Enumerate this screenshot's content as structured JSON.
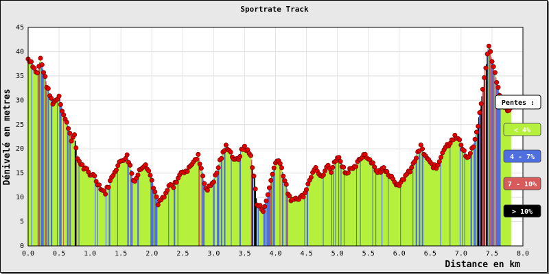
{
  "chart_data": {
    "type": "bar",
    "title": "Sportrate Track",
    "xlabel": "Distance en km",
    "ylabel": "Dénivelé en metres",
    "xlim": [
      0,
      8.0
    ],
    "ylim": [
      0,
      45
    ],
    "x_ticks": [
      "0.0",
      "0.5",
      "1.0",
      "1.5",
      "2.0",
      "2.5",
      "3.0",
      "3.5",
      "4.0",
      "4.5",
      "5.0",
      "5.5",
      "6.0",
      "6.5",
      "7.0",
      "7.5",
      "8.0"
    ],
    "y_ticks": [
      "0",
      "5",
      "10",
      "15",
      "20",
      "25",
      "30",
      "35",
      "40",
      "45"
    ],
    "grid": true,
    "legend": {
      "title": "Pentes :",
      "position": "right",
      "items": [
        {
          "label": "< 4%",
          "color": "#b4f03c"
        },
        {
          "label": "4 - 7%",
          "color": "#4f6fe0"
        },
        {
          "label": "7 - 10%",
          "color": "#d85a5a"
        },
        {
          "label": "> 10%",
          "color": "#000000"
        }
      ]
    },
    "marker_color": "#e00000",
    "profile": [
      [
        0.0,
        38.5
      ],
      [
        0.05,
        38.0
      ],
      [
        0.1,
        36.5
      ],
      [
        0.15,
        35.5
      ],
      [
        0.2,
        38.5
      ],
      [
        0.25,
        36.0
      ],
      [
        0.3,
        33.0
      ],
      [
        0.35,
        31.0
      ],
      [
        0.4,
        29.5
      ],
      [
        0.45,
        30.0
      ],
      [
        0.5,
        31.0
      ],
      [
        0.55,
        28.0
      ],
      [
        0.6,
        26.0
      ],
      [
        0.65,
        24.5
      ],
      [
        0.7,
        22.0
      ],
      [
        0.75,
        22.5
      ],
      [
        0.8,
        18.0
      ],
      [
        0.85,
        17.0
      ],
      [
        0.9,
        16.0
      ],
      [
        0.95,
        15.5
      ],
      [
        1.0,
        14.5
      ],
      [
        1.05,
        15.0
      ],
      [
        1.1,
        13.5
      ],
      [
        1.15,
        12.5
      ],
      [
        1.2,
        11.5
      ],
      [
        1.25,
        11.0
      ],
      [
        1.3,
        12.5
      ],
      [
        1.35,
        14.0
      ],
      [
        1.4,
        15.5
      ],
      [
        1.45,
        16.5
      ],
      [
        1.5,
        17.5
      ],
      [
        1.55,
        18.0
      ],
      [
        1.6,
        18.5
      ],
      [
        1.65,
        16.5
      ],
      [
        1.7,
        13.5
      ],
      [
        1.75,
        14.0
      ],
      [
        1.8,
        15.5
      ],
      [
        1.85,
        16.5
      ],
      [
        1.9,
        17.0
      ],
      [
        1.95,
        15.5
      ],
      [
        2.0,
        13.5
      ],
      [
        2.05,
        11.0
      ],
      [
        2.1,
        8.5
      ],
      [
        2.15,
        9.5
      ],
      [
        2.2,
        10.0
      ],
      [
        2.25,
        11.5
      ],
      [
        2.3,
        12.5
      ],
      [
        2.35,
        12.0
      ],
      [
        2.4,
        13.5
      ],
      [
        2.45,
        14.5
      ],
      [
        2.5,
        15.5
      ],
      [
        2.55,
        15.0
      ],
      [
        2.6,
        16.5
      ],
      [
        2.65,
        17.0
      ],
      [
        2.7,
        17.5
      ],
      [
        2.75,
        18.5
      ],
      [
        2.8,
        16.0
      ],
      [
        2.85,
        13.0
      ],
      [
        2.9,
        11.5
      ],
      [
        2.95,
        12.5
      ],
      [
        3.0,
        13.5
      ],
      [
        3.05,
        15.0
      ],
      [
        3.1,
        17.5
      ],
      [
        3.15,
        19.0
      ],
      [
        3.2,
        20.5
      ],
      [
        3.25,
        20.0
      ],
      [
        3.3,
        18.5
      ],
      [
        3.35,
        17.5
      ],
      [
        3.4,
        18.0
      ],
      [
        3.45,
        19.5
      ],
      [
        3.5,
        20.5
      ],
      [
        3.55,
        19.5
      ],
      [
        3.6,
        18.5
      ],
      [
        3.65,
        14.5
      ],
      [
        3.7,
        8.5
      ],
      [
        3.75,
        8.0
      ],
      [
        3.8,
        7.5
      ],
      [
        3.85,
        9.0
      ],
      [
        3.9,
        12.0
      ],
      [
        3.95,
        15.0
      ],
      [
        4.0,
        17.0
      ],
      [
        4.05,
        18.0
      ],
      [
        4.1,
        16.0
      ],
      [
        4.15,
        13.5
      ],
      [
        4.2,
        11.0
      ],
      [
        4.25,
        9.0
      ],
      [
        4.3,
        10.0
      ],
      [
        4.35,
        9.5
      ],
      [
        4.4,
        10.0
      ],
      [
        4.45,
        10.5
      ],
      [
        4.5,
        12.0
      ],
      [
        4.55,
        13.5
      ],
      [
        4.6,
        15.5
      ],
      [
        4.65,
        16.5
      ],
      [
        4.7,
        15.0
      ],
      [
        4.75,
        14.0
      ],
      [
        4.8,
        15.5
      ],
      [
        4.85,
        16.5
      ],
      [
        4.9,
        15.5
      ],
      [
        4.95,
        17.0
      ],
      [
        5.0,
        18.5
      ],
      [
        5.05,
        17.5
      ],
      [
        5.1,
        16.0
      ],
      [
        5.15,
        15.0
      ],
      [
        5.2,
        16.0
      ],
      [
        5.25,
        15.5
      ],
      [
        5.3,
        16.5
      ],
      [
        5.35,
        17.5
      ],
      [
        5.4,
        18.5
      ],
      [
        5.45,
        19.0
      ],
      [
        5.5,
        18.0
      ],
      [
        5.55,
        17.5
      ],
      [
        5.6,
        16.5
      ],
      [
        5.65,
        15.0
      ],
      [
        5.7,
        15.5
      ],
      [
        5.75,
        16.0
      ],
      [
        5.8,
        15.5
      ],
      [
        5.85,
        14.5
      ],
      [
        5.9,
        14.0
      ],
      [
        5.95,
        13.0
      ],
      [
        6.0,
        12.0
      ],
      [
        6.05,
        13.5
      ],
      [
        6.1,
        14.5
      ],
      [
        6.15,
        15.0
      ],
      [
        6.2,
        16.0
      ],
      [
        6.25,
        17.5
      ],
      [
        6.3,
        19.0
      ],
      [
        6.35,
        20.5
      ],
      [
        6.4,
        19.0
      ],
      [
        6.45,
        18.0
      ],
      [
        6.5,
        17.0
      ],
      [
        6.55,
        16.5
      ],
      [
        6.6,
        16.0
      ],
      [
        6.65,
        17.5
      ],
      [
        6.7,
        19.5
      ],
      [
        6.75,
        20.5
      ],
      [
        6.8,
        21.0
      ],
      [
        6.85,
        22.0
      ],
      [
        6.9,
        22.5
      ],
      [
        6.95,
        22.0
      ],
      [
        7.0,
        21.0
      ],
      [
        7.05,
        19.5
      ],
      [
        7.1,
        18.0
      ],
      [
        7.15,
        19.0
      ],
      [
        7.2,
        20.5
      ],
      [
        7.25,
        23.0
      ],
      [
        7.3,
        27.0
      ],
      [
        7.35,
        32.0
      ],
      [
        7.4,
        37.0
      ],
      [
        7.45,
        41.5
      ],
      [
        7.5,
        38.0
      ],
      [
        7.55,
        35.5
      ],
      [
        7.6,
        32.5
      ],
      [
        7.65,
        30.0
      ],
      [
        7.7,
        28.5
      ],
      [
        7.75,
        28.0
      ],
      [
        7.8,
        28.5
      ]
    ]
  }
}
